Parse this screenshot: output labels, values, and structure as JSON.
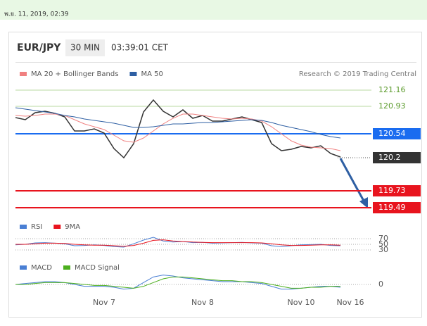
{
  "header": {
    "timestamp": "พ.ย. 11, 2019, 02:39",
    "symbol": "EUR/JPY",
    "interval": "30 MIN",
    "time": "03:39:01 CET",
    "credit": "Research © 2019 Trading Central"
  },
  "chart_data": [
    {
      "type": "line",
      "categories": [
        null,
        null,
        null,
        null,
        null,
        null,
        null,
        null,
        null,
        "Nov 7",
        null,
        null,
        null,
        null,
        null,
        null,
        null,
        null,
        null,
        "Nov 8",
        null,
        null,
        null,
        null,
        null,
        null,
        null,
        null,
        null,
        "Nov 10",
        null,
        null,
        null,
        null,
        "Nov 16",
        null
      ],
      "ylim": [
        119.39,
        121.26
      ],
      "yticks": [
        121.16,
        120.93,
        120.54,
        120.2,
        119.73,
        119.49
      ],
      "tick_colors": [
        "#5a9a2a",
        "#5a9a2a",
        "#1a6cf0",
        "#333333",
        "#e8141e",
        "#e8141e"
      ],
      "tick_styles": [
        "plain",
        "plain",
        "boxed",
        "boxed-dotted",
        "boxed",
        "boxed"
      ],
      "series": [
        {
          "color": "#333333",
          "values": [
            120.77,
            120.74,
            120.84,
            120.86,
            120.83,
            120.78,
            120.58,
            120.58,
            120.61,
            120.55,
            120.33,
            120.2,
            120.4,
            120.85,
            121.02,
            120.86,
            120.78,
            120.88,
            120.76,
            120.8,
            120.72,
            120.72,
            120.75,
            120.78,
            120.74,
            120.7,
            120.4,
            120.3,
            120.32,
            120.36,
            120.34,
            120.37,
            120.26,
            120.21,
            null,
            null
          ]
        },
        {
          "name": "MA 20 + Bollinger Bands",
          "color": "#f08080",
          "values": [
            120.8,
            120.79,
            120.8,
            120.82,
            120.82,
            120.8,
            120.74,
            120.68,
            120.64,
            120.6,
            120.52,
            120.44,
            120.42,
            120.48,
            120.58,
            120.68,
            120.76,
            120.82,
            120.82,
            120.8,
            120.78,
            120.76,
            120.75,
            120.76,
            120.75,
            120.72,
            120.64,
            120.54,
            120.44,
            120.38,
            120.35,
            120.34,
            120.33,
            120.3,
            null,
            null
          ]
        },
        {
          "name": "MA 50",
          "color": "#2e5fa3",
          "values": [
            120.91,
            120.89,
            120.87,
            120.85,
            120.83,
            120.8,
            120.78,
            120.75,
            120.73,
            120.71,
            120.69,
            120.66,
            120.63,
            120.63,
            120.64,
            120.66,
            120.68,
            120.68,
            120.69,
            120.7,
            120.7,
            120.71,
            120.72,
            120.73,
            120.74,
            120.73,
            120.7,
            120.66,
            120.63,
            120.6,
            120.57,
            120.53,
            120.5,
            120.48,
            null,
            null
          ]
        }
      ]
    },
    {
      "type": "line",
      "ylim": [
        20,
        80
      ],
      "yticks": [
        70,
        50,
        30
      ],
      "series": [
        {
          "name": "RSI",
          "color": "#4a7fd4",
          "values": [
            48,
            50,
            55,
            56,
            54,
            52,
            45,
            46,
            48,
            46,
            42,
            40,
            52,
            65,
            75,
            62,
            58,
            60,
            56,
            57,
            54,
            55,
            56,
            57,
            55,
            54,
            45,
            42,
            45,
            48,
            49,
            50,
            46,
            45,
            null,
            null
          ]
        },
        {
          "name": "9MA",
          "color": "#e8141e",
          "values": [
            50,
            50,
            52,
            54,
            54,
            53,
            50,
            48,
            47,
            47,
            45,
            43,
            46,
            54,
            64,
            66,
            62,
            60,
            58,
            57,
            56,
            56,
            56,
            56,
            56,
            55,
            52,
            48,
            46,
            46,
            47,
            48,
            48,
            47,
            null,
            null
          ]
        }
      ]
    },
    {
      "type": "line",
      "ylim": [
        -0.15,
        0.15
      ],
      "yticks": [
        0
      ],
      "series": [
        {
          "name": "MACD",
          "color": "#4a7fd4",
          "values": [
            0,
            0.01,
            0.02,
            0.03,
            0.03,
            0.02,
            0,
            -0.02,
            -0.02,
            -0.02,
            -0.03,
            -0.05,
            -0.04,
            0.02,
            0.08,
            0.1,
            0.09,
            0.07,
            0.06,
            0.05,
            0.04,
            0.03,
            0.03,
            0.03,
            0.02,
            0.01,
            -0.02,
            -0.05,
            -0.05,
            -0.04,
            -0.03,
            -0.02,
            -0.02,
            -0.03,
            null,
            null
          ]
        },
        {
          "name": "MACD Signal",
          "color": "#4caf1e",
          "values": [
            0,
            0,
            0.01,
            0.02,
            0.02,
            0.02,
            0.01,
            0,
            -0.01,
            -0.01,
            -0.02,
            -0.03,
            -0.04,
            -0.02,
            0.02,
            0.06,
            0.08,
            0.08,
            0.07,
            0.06,
            0.05,
            0.04,
            0.04,
            0.03,
            0.03,
            0.02,
            0,
            -0.02,
            -0.04,
            -0.04,
            -0.03,
            -0.03,
            -0.02,
            -0.02,
            null,
            null
          ]
        }
      ]
    }
  ]
}
